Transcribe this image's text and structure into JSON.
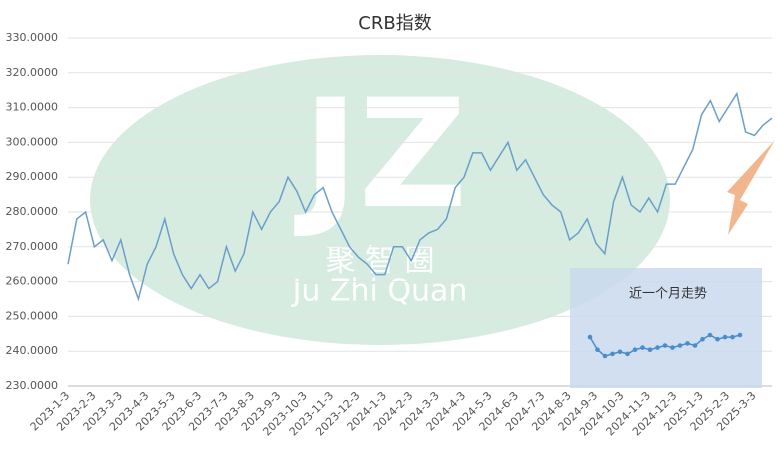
{
  "chart_data": [
    {
      "type": "line",
      "title": "CRB指数",
      "categories": [
        "2023-1-3",
        null,
        null,
        "2023-2-3",
        null,
        null,
        "2023-3-3",
        null,
        null,
        "2023-4-3",
        null,
        null,
        "2023-5-3",
        null,
        null,
        "2023-6-3",
        null,
        null,
        "2023-7-3",
        null,
        null,
        "2023-8-3",
        null,
        null,
        "2023-9-3",
        null,
        null,
        "2023-10-3",
        null,
        null,
        "2023-11-3",
        null,
        null,
        "2023-12-3",
        null,
        null,
        "2024-1-3",
        null,
        null,
        "2024-2-3",
        null,
        null,
        "2024-3-3",
        null,
        null,
        "2024-4-3",
        null,
        null,
        "2024-5-3",
        null,
        null,
        "2024-6-3",
        null,
        null,
        "2024-7-3",
        null,
        null,
        "2024-8-3",
        null,
        null,
        "2024-9-3",
        null,
        null,
        "2024-10-3",
        null,
        null,
        "2024-11-3",
        null,
        null,
        "2024-12-3",
        null,
        null,
        "2025-1-3",
        null,
        null,
        "2025-2-3",
        null,
        null,
        "2025-3-3",
        null,
        null
      ],
      "values": [
        265,
        278,
        280,
        270,
        272,
        266,
        272,
        262,
        255,
        265,
        270,
        278,
        268,
        262,
        258,
        262,
        258,
        260,
        270,
        263,
        268,
        280,
        275,
        280,
        283,
        290,
        286,
        280,
        285,
        287,
        280,
        275,
        270,
        267,
        265,
        262,
        262,
        270,
        270,
        266,
        272,
        274,
        275,
        278,
        287,
        290,
        297,
        297,
        292,
        296,
        300,
        292,
        295,
        290,
        285,
        282,
        280,
        272,
        274,
        278,
        271,
        268,
        283,
        290,
        282,
        280,
        284,
        280,
        288,
        288,
        293,
        298,
        308,
        312,
        306,
        310,
        314,
        303,
        302,
        305,
        307
      ],
      "color": "#6a9fcb",
      "ylim": [
        230,
        330
      ],
      "yticks": [
        {
          "value": 230,
          "label": "230.0000"
        },
        {
          "value": 240,
          "label": "240.0000"
        },
        {
          "value": 250,
          "label": "250.0000"
        },
        {
          "value": 260,
          "label": "260.0000"
        },
        {
          "value": 270,
          "label": "270.0000"
        },
        {
          "value": 280,
          "label": "280.0000"
        },
        {
          "value": 290,
          "label": "290.0000"
        },
        {
          "value": 300,
          "label": "300.0000"
        },
        {
          "value": 310,
          "label": "310.0000"
        },
        {
          "value": 320,
          "label": "320.0000"
        },
        {
          "value": 330,
          "label": "330.0000"
        }
      ],
      "grid": true,
      "watermark": {
        "logo": "JZ",
        "cn": "聚 智 圈",
        "en": "Ju Zhi Quan"
      }
    },
    {
      "type": "line",
      "title": "近一个月走势",
      "values": [
        243.5,
        240.5,
        239,
        239.5,
        240,
        239.5,
        240.5,
        241,
        240.5,
        241,
        241.5,
        241,
        241.5,
        242,
        241.5,
        243,
        244,
        243,
        243.5,
        243.5,
        244
      ],
      "color": "#4a8ccc",
      "markers": true
    }
  ]
}
